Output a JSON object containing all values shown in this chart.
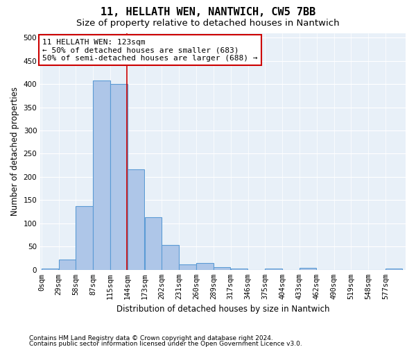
{
  "title": "11, HELLATH WEN, NANTWICH, CW5 7BB",
  "subtitle": "Size of property relative to detached houses in Nantwich",
  "xlabel": "Distribution of detached houses by size in Nantwich",
  "ylabel": "Number of detached properties",
  "footer1": "Contains HM Land Registry data © Crown copyright and database right 2024.",
  "footer2": "Contains public sector information licensed under the Open Government Licence v3.0.",
  "bar_labels": [
    "0sqm",
    "29sqm",
    "58sqm",
    "87sqm",
    "115sqm",
    "144sqm",
    "173sqm",
    "202sqm",
    "231sqm",
    "260sqm",
    "289sqm",
    "317sqm",
    "346sqm",
    "375sqm",
    "404sqm",
    "433sqm",
    "462sqm",
    "490sqm",
    "519sqm",
    "548sqm",
    "577sqm"
  ],
  "bar_values": [
    3,
    22,
    137,
    407,
    400,
    216,
    114,
    53,
    12,
    15,
    6,
    2,
    0,
    3,
    0,
    4,
    0,
    0,
    0,
    0,
    3
  ],
  "bar_color": "#aec6e8",
  "bar_edgecolor": "#5b9bd5",
  "background_color": "#e8f0f8",
  "property_label": "11 HELLATH WEN: 123sqm",
  "annotation_line1": "← 50% of detached houses are smaller (683)",
  "annotation_line2": "50% of semi-detached houses are larger (688) →",
  "vline_x": 144,
  "vline_color": "#cc0000",
  "ylim": [
    0,
    510
  ],
  "yticks": [
    0,
    50,
    100,
    150,
    200,
    250,
    300,
    350,
    400,
    450,
    500
  ],
  "bin_width": 29,
  "n_bars": 21,
  "title_fontsize": 11,
  "subtitle_fontsize": 9.5,
  "axis_fontsize": 8.5,
  "tick_fontsize": 7.5,
  "annotation_fontsize": 8,
  "footer_fontsize": 6.5
}
